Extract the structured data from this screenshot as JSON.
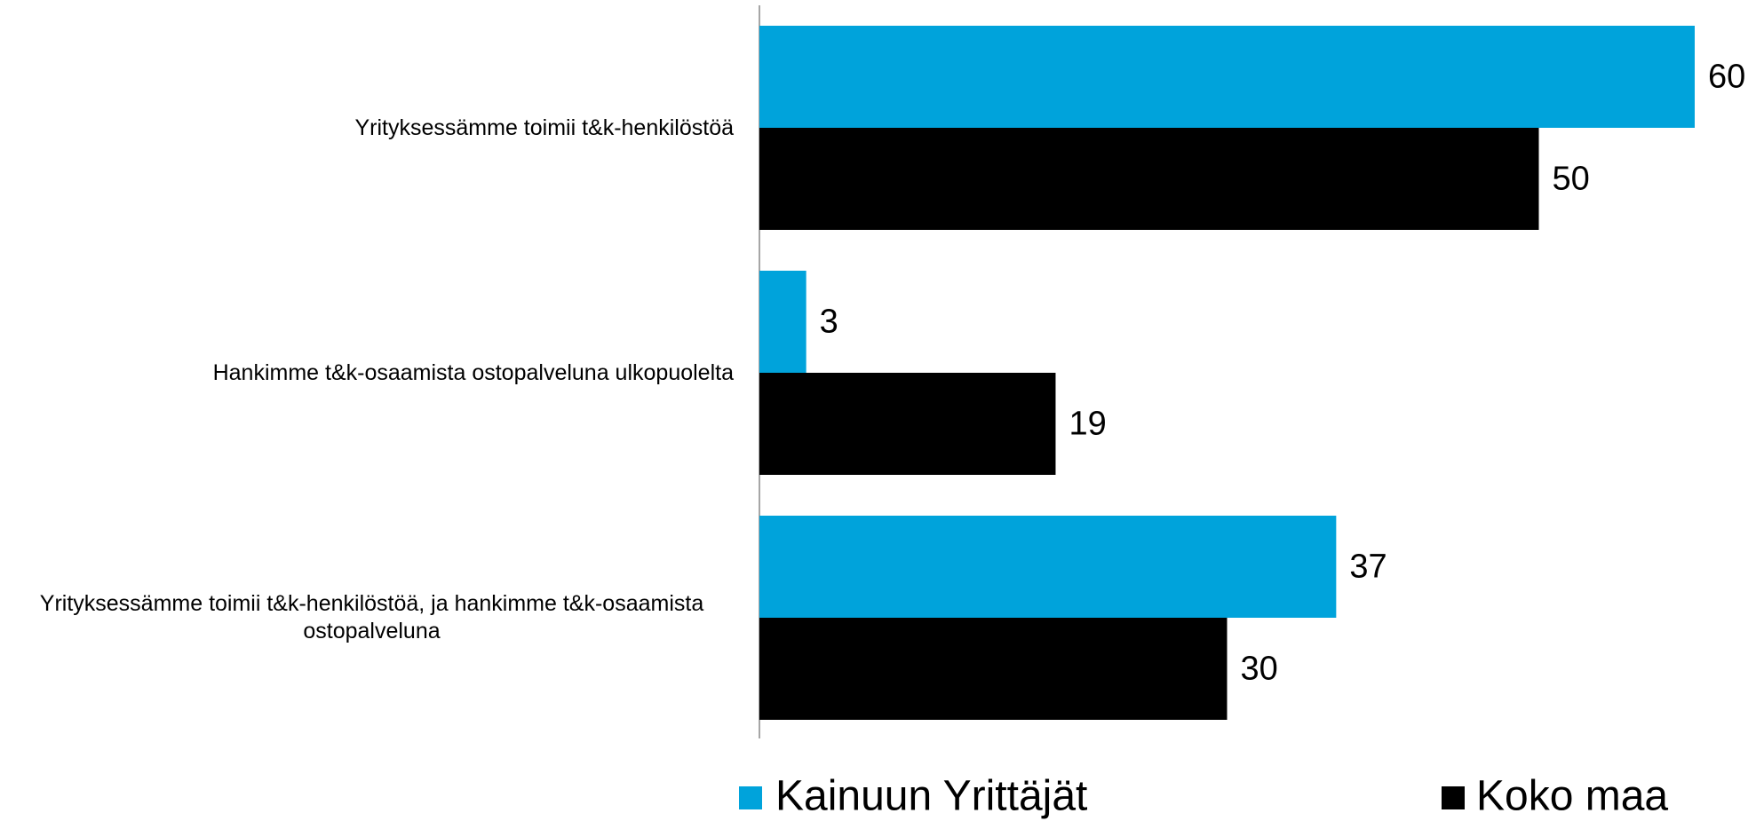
{
  "chart_data": {
    "type": "bar",
    "orientation": "horizontal",
    "categories": [
      "Yrityksessämme toimii t&k-henkilöstöä",
      "Hankimme t&k-osaamista ostopalveluna ulkopuolelta",
      "Yrityksessämme toimii t&k-henkilöstöä, ja hankimme t&k-osaamista ostopalveluna"
    ],
    "series": [
      {
        "name": "Kainuun Yrittäjät",
        "color": "#00a3db",
        "values": [
          60,
          3,
          37
        ]
      },
      {
        "name": "Koko maa",
        "color": "#000000",
        "values": [
          50,
          19,
          30
        ]
      }
    ]
  }
}
